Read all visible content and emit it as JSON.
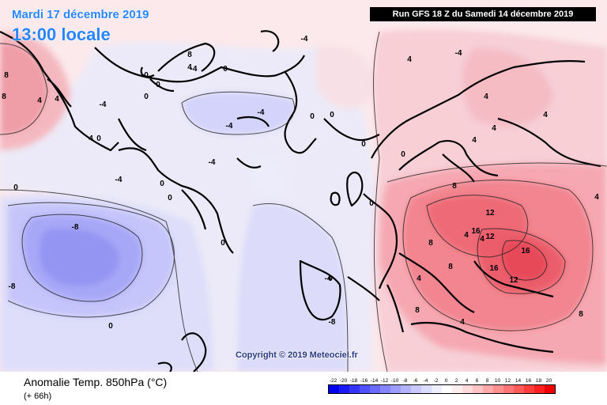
{
  "header": {
    "date": "Mardi 17 décembre 2019",
    "local_time": "13:00 locale",
    "run_info": "Run GFS 18 Z du Samedi 14 décembre 2019"
  },
  "copyright": "Copyright © 2019 Meteociel.fr",
  "footer": {
    "title": "Anomalie Temp. 850hPa (°C)",
    "lead_time": "(+ 66h)"
  },
  "scale": {
    "values": [
      "-22",
      "-20",
      "-18",
      "-16",
      "-14",
      "-12",
      "-10",
      "-8",
      "-6",
      "-4",
      "-2",
      "0",
      "2",
      "4",
      "6",
      "8",
      "10",
      "12",
      "14",
      "16",
      "18",
      "20"
    ],
    "colors": [
      "#0000f0",
      "#1a1af5",
      "#3535f8",
      "#5050fa",
      "#6b6bfb",
      "#8585fc",
      "#9c9cfc",
      "#b3b3fd",
      "#c9c9fe",
      "#dcdcfe",
      "#eeeeff",
      "#ffffff",
      "#ffeeee",
      "#ffdada",
      "#ffc3c3",
      "#ffaaaa",
      "#ff9090",
      "#ff7575",
      "#ff5a5a",
      "#ff3d3d",
      "#ff2020",
      "#ee0000"
    ]
  },
  "contour_labels": [
    "-4",
    "-4",
    "-4",
    "-4",
    "-4",
    "-4",
    "-4",
    "-4",
    "-4",
    "-8",
    "-8",
    "-8",
    "0",
    "0",
    "0",
    "0",
    "0",
    "0",
    "0",
    "0",
    "0",
    "0",
    "0",
    "0",
    "0",
    "0",
    "0",
    "0",
    "4",
    "4",
    "4",
    "4",
    "4",
    "4",
    "4",
    "4",
    "4",
    "4",
    "4",
    "4",
    "4",
    "4",
    "8",
    "8",
    "8",
    "8",
    "8",
    "8",
    "8",
    "8",
    "12",
    "12",
    "12",
    "16",
    "16",
    "16"
  ]
}
